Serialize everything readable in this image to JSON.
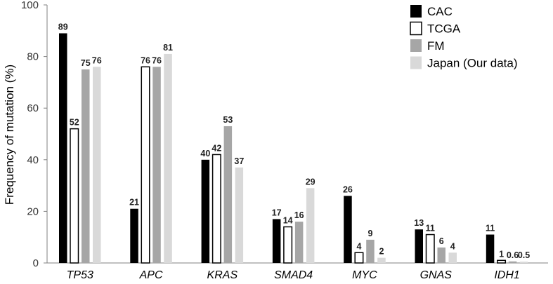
{
  "chart_data": {
    "type": "bar",
    "title": "",
    "xlabel": "",
    "ylabel": "Frequency of mutation (%)",
    "ylim": [
      0,
      100
    ],
    "yticks": [
      "0",
      "20",
      "40",
      "60",
      "80",
      "100"
    ],
    "grid": false,
    "legend_position": "top-right",
    "categories": [
      "TP53",
      "APC",
      "KRAS",
      "SMAD4",
      "MYC",
      "GNAS",
      "IDH1"
    ],
    "series": [
      {
        "name": "CAC",
        "style": "solid",
        "color": "#000000",
        "values": [
          89,
          21,
          40,
          17,
          26,
          13,
          11
        ],
        "labels": [
          "89",
          "21",
          "40",
          "17",
          "26",
          "13",
          "11"
        ]
      },
      {
        "name": "TCGA",
        "style": "outline",
        "color": "#ffffff",
        "values": [
          52,
          76,
          42,
          14,
          4,
          11,
          1
        ],
        "labels": [
          "52",
          "76",
          "42",
          "14",
          "4",
          "11",
          "1"
        ]
      },
      {
        "name": "FM",
        "style": "solid",
        "color": "#a6a6a6",
        "values": [
          75,
          76,
          53,
          16,
          9,
          6,
          0.6
        ],
        "labels": [
          "75",
          "76",
          "53",
          "16",
          "9",
          "6",
          "0.6"
        ]
      },
      {
        "name": "Japan (Our data)",
        "style": "solid",
        "color": "#d9d9d9",
        "values": [
          76,
          81,
          37,
          29,
          2,
          4,
          0.5
        ],
        "labels": [
          "76",
          "81",
          "37",
          "29",
          "2",
          "4",
          "0.5"
        ]
      }
    ]
  }
}
